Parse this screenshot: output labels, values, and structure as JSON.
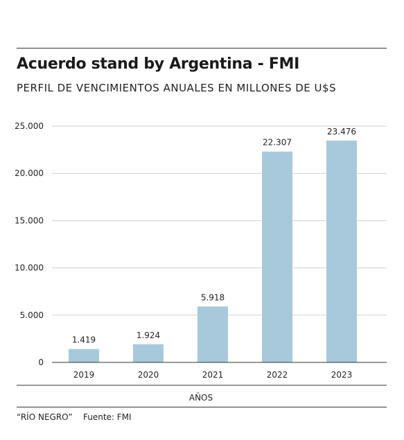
{
  "title": "Acuerdo stand by Argentina - FMI",
  "subtitle": "PERFIL DE VENCIMIENTOS ANUALES EN MILLONES DE U$S",
  "footer": {
    "publisher": "“RÍO NEGRO”",
    "source": "Fuente: FMI"
  },
  "colors": {
    "bar": "#a8c9db",
    "grid": "#cfcfcf",
    "axis": "#333333",
    "text": "#222222"
  },
  "chart_data": {
    "type": "bar",
    "categories": [
      "2019",
      "2020",
      "2021",
      "2022",
      "2023"
    ],
    "values": [
      1419,
      1924,
      5918,
      22307,
      23476
    ],
    "value_labels": [
      "1.419",
      "1.924",
      "5.918",
      "22.307",
      "23.476"
    ],
    "yticks": [
      0,
      5000,
      10000,
      15000,
      20000,
      25000
    ],
    "ytick_labels": [
      "0",
      "5.000",
      "10.000",
      "15.000",
      "20.000",
      "25.000"
    ],
    "xlabel": "AÑOS",
    "ylabel": "",
    "ylim": [
      0,
      25000
    ],
    "grid": true
  }
}
